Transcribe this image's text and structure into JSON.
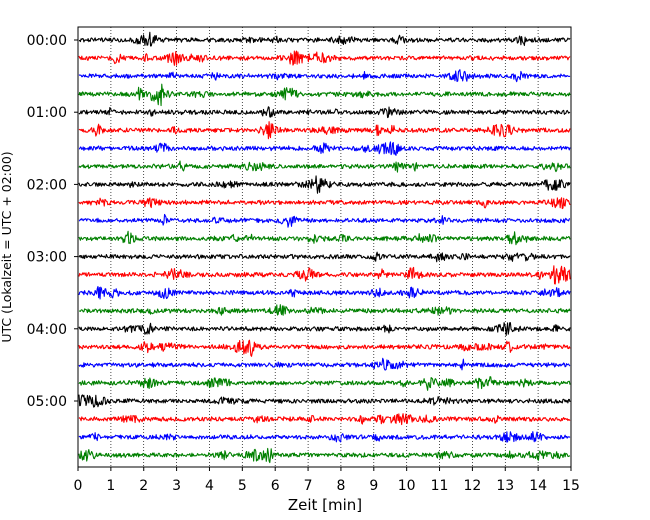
{
  "chart_data": {
    "type": "line",
    "title": "",
    "xlabel": "Zeit  [min]",
    "ylabel": "UTC (Lokalzeit = UTC + 02:00)",
    "xlim": [
      0,
      15
    ],
    "x_ticks": [
      0,
      1,
      2,
      3,
      4,
      5,
      6,
      7,
      8,
      9,
      10,
      11,
      12,
      13,
      14,
      15
    ],
    "x_tick_labels": [
      "0",
      "1",
      "2",
      "3",
      "4",
      "5",
      "6",
      "7",
      "8",
      "9",
      "10",
      "11",
      "12",
      "13",
      "14",
      "15"
    ],
    "y_tick_labels": [
      "00:00",
      "01:00",
      "02:00",
      "03:00",
      "04:00",
      "05:00"
    ],
    "traces_per_hour": 4,
    "minutes_per_trace": 15,
    "trace_colors": [
      "#000000",
      "#ff0000",
      "#0000ff",
      "#008000"
    ],
    "grid": "vertical dotted lines at each minute",
    "series": [
      {
        "start": "00:00",
        "color": "#000000"
      },
      {
        "start": "00:15",
        "color": "#ff0000"
      },
      {
        "start": "00:30",
        "color": "#0000ff"
      },
      {
        "start": "00:45",
        "color": "#008000"
      },
      {
        "start": "01:00",
        "color": "#000000"
      },
      {
        "start": "01:15",
        "color": "#ff0000"
      },
      {
        "start": "01:30",
        "color": "#0000ff"
      },
      {
        "start": "01:45",
        "color": "#008000"
      },
      {
        "start": "02:00",
        "color": "#000000"
      },
      {
        "start": "02:15",
        "color": "#ff0000"
      },
      {
        "start": "02:30",
        "color": "#0000ff"
      },
      {
        "start": "02:45",
        "color": "#008000"
      },
      {
        "start": "03:00",
        "color": "#000000"
      },
      {
        "start": "03:15",
        "color": "#ff0000"
      },
      {
        "start": "03:30",
        "color": "#0000ff"
      },
      {
        "start": "03:45",
        "color": "#008000"
      },
      {
        "start": "04:00",
        "color": "#000000"
      },
      {
        "start": "04:15",
        "color": "#ff0000"
      },
      {
        "start": "04:30",
        "color": "#0000ff"
      },
      {
        "start": "04:45",
        "color": "#008000"
      },
      {
        "start": "05:00",
        "color": "#000000"
      },
      {
        "start": "05:15",
        "color": "#ff0000"
      },
      {
        "start": "05:30",
        "color": "#0000ff"
      },
      {
        "start": "05:45",
        "color": "#008000"
      }
    ]
  }
}
